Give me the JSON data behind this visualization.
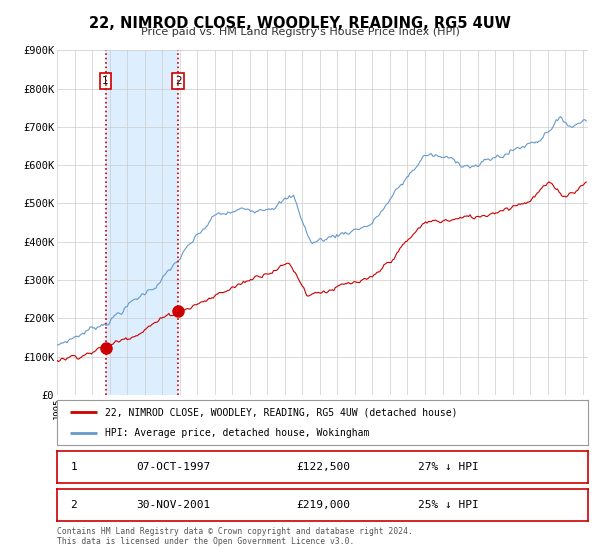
{
  "title": "22, NIMROD CLOSE, WOODLEY, READING, RG5 4UW",
  "subtitle": "Price paid vs. HM Land Registry's House Price Index (HPI)",
  "ylim": [
    0,
    900000
  ],
  "xlim_start": 1995.0,
  "xlim_end": 2025.3,
  "ytick_labels": [
    "£0",
    "£100K",
    "£200K",
    "£300K",
    "£400K",
    "£500K",
    "£600K",
    "£700K",
    "£800K",
    "£900K"
  ],
  "ytick_values": [
    0,
    100000,
    200000,
    300000,
    400000,
    500000,
    600000,
    700000,
    800000,
    900000
  ],
  "sale1_date": 1997.77,
  "sale1_price": 122500,
  "sale1_label": "1",
  "sale1_display": "07-OCT-1997",
  "sale1_price_str": "£122,500",
  "sale1_hpi": "27% ↓ HPI",
  "sale2_date": 2001.92,
  "sale2_price": 219000,
  "sale2_label": "2",
  "sale2_display": "30-NOV-2001",
  "sale2_price_str": "£219,000",
  "sale2_hpi": "25% ↓ HPI",
  "red_line_color": "#cc0000",
  "blue_line_color": "#6699cc",
  "shading_color": "#ddeeff",
  "legend_line1": "22, NIMROD CLOSE, WOODLEY, READING, RG5 4UW (detached house)",
  "legend_line2": "HPI: Average price, detached house, Wokingham",
  "footer1": "Contains HM Land Registry data © Crown copyright and database right 2024.",
  "footer2": "This data is licensed under the Open Government Licence v3.0.",
  "background_color": "#ffffff",
  "grid_color": "#cccccc"
}
